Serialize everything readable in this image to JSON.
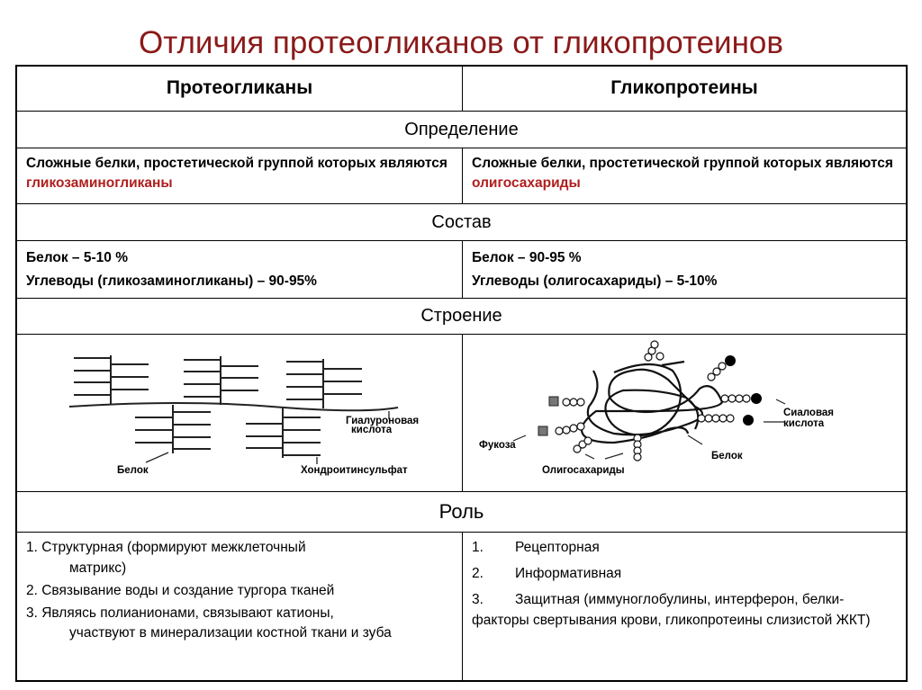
{
  "title": "Отличия протеогликанов от гликопротеинов",
  "table": {
    "headers": [
      "Протеогликаны",
      "Гликопротеины"
    ],
    "definition": {
      "label": "Определение",
      "left": {
        "text": "Сложные белки, простетической группой которых являются ",
        "highlight": "гликозаминогликаны"
      },
      "right": {
        "text": "Сложные белки, простетической группой которых являются ",
        "highlight": "олигосахариды"
      }
    },
    "composition": {
      "label": "Состав",
      "left": [
        "Белок – 5-10 %",
        "Углеводы (гликозаминогликаны) – 90-95%"
      ],
      "right": [
        "Белок – 90-95 %",
        "Углеводы (олигосахариды) – 5-10%"
      ]
    },
    "structure": {
      "label": "Строение",
      "left_labels": {
        "hyaluronic_line1": "Гиалуроновая",
        "hyaluronic_line2": "кислота",
        "protein": "Белок",
        "chondroitin": "Хондроитинсульфат"
      },
      "right_labels": {
        "sialic_line1": "Сиаловая",
        "sialic_line2": "кислота",
        "fucose": "Фукоза",
        "protein": "Белок",
        "oligosaccharides": "Олигосахариды"
      }
    },
    "role": {
      "label": "Роль",
      "left": [
        {
          "first": "1. Структурная (формируют межклеточный",
          "rest": "матрикс)"
        },
        {
          "first": "2. Связывание воды и создание тургора тканей",
          "rest": ""
        },
        {
          "first": "3. Являясь полианионами, связывают катионы,",
          "rest": "участвуют в минерализации костной ткани и зуба"
        }
      ],
      "right": [
        {
          "num": "1.",
          "text": "Рецепторная"
        },
        {
          "num": "2.",
          "text": "Информативная"
        },
        {
          "num": "3.",
          "text": "Защитная (иммуноглобулины, интерферон, белки-факторы свертывания крови, гликопротеины слизистой ЖКТ)"
        }
      ]
    }
  },
  "colors": {
    "title": "#8b1a1a",
    "highlight": "#b01e1e"
  }
}
